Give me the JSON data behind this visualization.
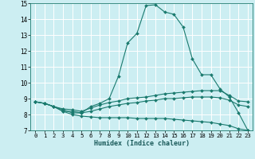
{
  "xlabel": "Humidex (Indice chaleur)",
  "bg_color": "#cceef2",
  "grid_color": "#ffffff",
  "line_color": "#1a7a6e",
  "xlim": [
    -0.5,
    23.5
  ],
  "ylim": [
    7,
    15
  ],
  "xticks": [
    0,
    1,
    2,
    3,
    4,
    5,
    6,
    7,
    8,
    9,
    10,
    11,
    12,
    13,
    14,
    15,
    16,
    17,
    18,
    19,
    20,
    21,
    22,
    23
  ],
  "yticks": [
    7,
    8,
    9,
    10,
    11,
    12,
    13,
    14,
    15
  ],
  "line1_x": [
    0,
    1,
    2,
    3,
    4,
    5,
    6,
    7,
    8,
    9,
    10,
    11,
    12,
    13,
    14,
    15,
    16,
    17,
    18,
    19,
    20,
    21,
    22,
    23
  ],
  "line1_y": [
    8.8,
    8.7,
    8.5,
    8.2,
    8.2,
    8.1,
    8.5,
    8.7,
    9.0,
    10.4,
    12.5,
    13.1,
    14.85,
    14.9,
    14.45,
    14.3,
    13.5,
    11.5,
    10.5,
    10.5,
    9.6,
    9.1,
    8.1,
    7.0
  ],
  "line2_x": [
    0,
    1,
    2,
    3,
    4,
    5,
    6,
    7,
    8,
    9,
    10,
    11,
    12,
    13,
    14,
    15,
    16,
    17,
    18,
    19,
    20,
    21,
    22,
    23
  ],
  "line2_y": [
    8.8,
    8.7,
    8.5,
    8.35,
    8.3,
    8.2,
    8.4,
    8.6,
    8.75,
    8.85,
    9.0,
    9.05,
    9.1,
    9.2,
    9.3,
    9.35,
    9.4,
    9.45,
    9.5,
    9.5,
    9.5,
    9.2,
    8.85,
    8.8
  ],
  "line3_x": [
    0,
    1,
    2,
    3,
    4,
    5,
    6,
    7,
    8,
    9,
    10,
    11,
    12,
    13,
    14,
    15,
    16,
    17,
    18,
    19,
    20,
    21,
    22,
    23
  ],
  "line3_y": [
    8.8,
    8.7,
    8.5,
    8.3,
    8.1,
    8.1,
    8.2,
    8.35,
    8.5,
    8.6,
    8.7,
    8.75,
    8.85,
    8.9,
    9.0,
    9.0,
    9.05,
    9.1,
    9.1,
    9.1,
    9.05,
    8.9,
    8.6,
    8.5
  ],
  "line4_x": [
    0,
    1,
    2,
    3,
    4,
    5,
    6,
    7,
    8,
    9,
    10,
    11,
    12,
    13,
    14,
    15,
    16,
    17,
    18,
    19,
    20,
    21,
    22,
    23
  ],
  "line4_y": [
    8.8,
    8.7,
    8.5,
    8.2,
    8.0,
    7.9,
    7.85,
    7.8,
    7.8,
    7.8,
    7.8,
    7.75,
    7.75,
    7.75,
    7.75,
    7.7,
    7.65,
    7.6,
    7.55,
    7.5,
    7.4,
    7.3,
    7.1,
    7.0
  ]
}
